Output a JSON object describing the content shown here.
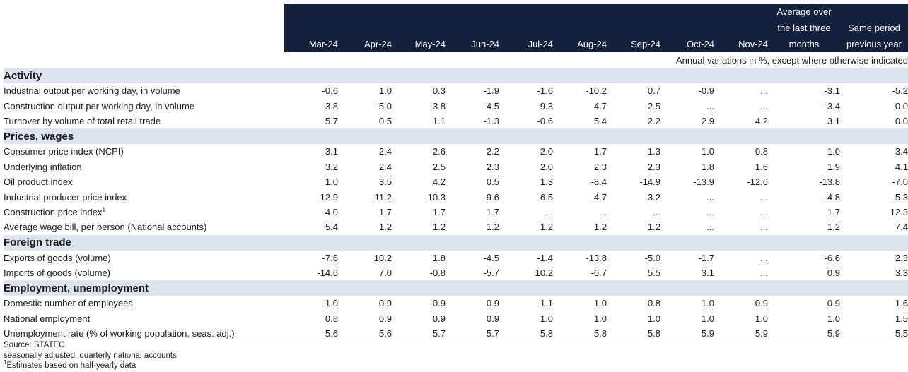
{
  "header": {
    "months": [
      "Mar-24",
      "Apr-24",
      "May-24",
      "Jun-24",
      "Jul-24",
      "Aug-24",
      "Sep-24",
      "Oct-24",
      "Nov-24"
    ],
    "avg_lines": [
      "Average over",
      "the last three",
      "months"
    ],
    "prev_lines": [
      "Same period",
      "previous year"
    ],
    "note": "Annual variations in %, except where otherwise indicated"
  },
  "sections": [
    {
      "title": "Activity",
      "rows": [
        {
          "label": "Industrial output per working day, in volume",
          "values": [
            "-0.6",
            "1.0",
            "0.3",
            "-1.9",
            "-1.6",
            "-10.2",
            "0.7",
            "-0.9",
            "...",
            "-3.1",
            "-5.2"
          ]
        },
        {
          "label": "Construction output per working day, in volume",
          "values": [
            "-3.8",
            "-5.0",
            "-3.8",
            "-4.5",
            "-9.3",
            "4.7",
            "-2.5",
            "...",
            "...",
            "-3.4",
            "0.0"
          ]
        },
        {
          "label": "Turnover by volume of total retail trade",
          "values": [
            "5.7",
            "0.5",
            "1.1",
            "-1.3",
            "-0.6",
            "5.4",
            "2.2",
            "2.9",
            "4.2",
            "3.1",
            "0.0"
          ]
        }
      ]
    },
    {
      "title": "Prices, wages",
      "rows": [
        {
          "label": "Consumer price index (NCPI)",
          "values": [
            "3.1",
            "2.4",
            "2.6",
            "2.2",
            "2.0",
            "1.7",
            "1.3",
            "1.0",
            "0.8",
            "1.0",
            "3.4"
          ]
        },
        {
          "label": "Underlying inflation",
          "values": [
            "3.2",
            "2.4",
            "2.5",
            "2.3",
            "2.0",
            "2.3",
            "2.3",
            "1.8",
            "1.6",
            "1.9",
            "4.1"
          ]
        },
        {
          "label": "Oil product index",
          "values": [
            "1.0",
            "3.5",
            "4.2",
            "0.5",
            "1.3",
            "-8.4",
            "-14.9",
            "-13.9",
            "-12.6",
            "-13.8",
            "-7.0"
          ]
        },
        {
          "label": "Industrial producer price index",
          "values": [
            "-12.9",
            "-11.2",
            "-10.3",
            "-9.6",
            "-6.5",
            "-4.7",
            "-3.2",
            "...",
            "...",
            "-4.8",
            "-5.3"
          ]
        },
        {
          "label": "Construction price index",
          "sup": "1",
          "values": [
            "4.0",
            "1.7",
            "1.7",
            "1.7",
            "...",
            "...",
            "...",
            "...",
            "...",
            "1.7",
            "12.3"
          ]
        },
        {
          "label": "Average wage bill, per person (National accounts)",
          "values": [
            "5.4",
            "1.2",
            "1.2",
            "1.2",
            "1.2",
            "1.2",
            "1.2",
            "...",
            "...",
            "1.2",
            "7.4"
          ]
        }
      ]
    },
    {
      "title": "Foreign trade",
      "rows": [
        {
          "label": "Exports of goods (volume)",
          "values": [
            "-7.6",
            "10.2",
            "1.8",
            "-4.5",
            "-1.4",
            "-13.8",
            "-5.0",
            "-1.7",
            "...",
            "-6.6",
            "2.3"
          ]
        },
        {
          "label": "Imports of goods (volume)",
          "values": [
            "-14.6",
            "7.0",
            "-0.8",
            "-5.7",
            "10.2",
            "-6.7",
            "5.5",
            "3.1",
            "...",
            "0.9",
            "3.3"
          ]
        }
      ]
    },
    {
      "title": "Employment, unemployment",
      "rows": [
        {
          "label": "Domestic number of employees",
          "values": [
            "1.0",
            "0.9",
            "0.9",
            "0.9",
            "1.1",
            "1.0",
            "0.8",
            "1.0",
            "0.9",
            "0.9",
            "1.6"
          ]
        },
        {
          "label": "National employment",
          "values": [
            "0.8",
            "0.9",
            "0.9",
            "0.9",
            "1.0",
            "1.0",
            "1.0",
            "1.0",
            "1.0",
            "1.0",
            "1.5"
          ]
        },
        {
          "label": "Unemployment rate (% of working population, seas. adj.)",
          "values": [
            "5.6",
            "5.6",
            "5.7",
            "5.7",
            "5.8",
            "5.8",
            "5.8",
            "5.9",
            "5.9",
            "5.9",
            "5.5"
          ]
        }
      ]
    }
  ],
  "footer": {
    "source": "Source: STATEC",
    "line2": "seasonally adjusted, quarterly national accounts",
    "footnote_mark": "1",
    "footnote_text": "Estimates based on half-yearly data"
  }
}
